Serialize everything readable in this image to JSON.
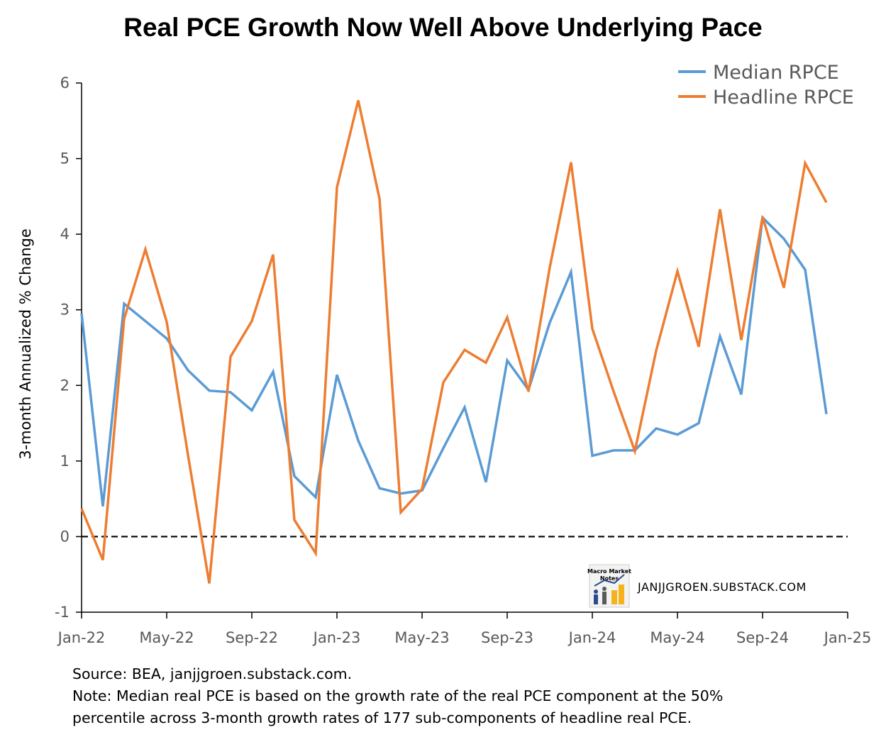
{
  "chart_data": {
    "type": "line",
    "title": "Real PCE Growth Now Well Above Underlying Pace",
    "ylabel": "3-month Annualized % Change",
    "xlabel": "",
    "ylim": [
      -1,
      6
    ],
    "yticks": [
      -1,
      0,
      1,
      2,
      3,
      4,
      5,
      6
    ],
    "x_start": "2022-01",
    "x_end": "2025-01",
    "xticks": [
      "Jan-22",
      "May-22",
      "Sep-22",
      "Jan-23",
      "May-23",
      "Sep-23",
      "Jan-24",
      "May-24",
      "Sep-24",
      "Jan-25"
    ],
    "x": [
      "2022-01",
      "2022-02",
      "2022-03",
      "2022-04",
      "2022-05",
      "2022-06",
      "2022-07",
      "2022-08",
      "2022-09",
      "2022-10",
      "2022-11",
      "2022-12",
      "2023-01",
      "2023-02",
      "2023-03",
      "2023-04",
      "2023-05",
      "2023-06",
      "2023-07",
      "2023-08",
      "2023-09",
      "2023-10",
      "2023-11",
      "2023-12",
      "2024-01",
      "2024-02",
      "2024-03",
      "2024-04",
      "2024-05",
      "2024-06",
      "2024-07",
      "2024-08",
      "2024-09",
      "2024-10",
      "2024-11",
      "2024-12"
    ],
    "series": [
      {
        "name": "Median RPCE",
        "color": "#5B9BD5",
        "values": [
          2.95,
          0.4,
          3.08,
          2.85,
          2.62,
          2.2,
          1.93,
          1.91,
          1.67,
          2.18,
          0.8,
          0.52,
          2.14,
          1.27,
          0.64,
          0.57,
          0.61,
          1.17,
          1.71,
          0.72,
          2.33,
          1.94,
          2.83,
          3.5,
          1.07,
          1.14,
          1.14,
          1.43,
          1.35,
          1.5,
          2.65,
          1.88,
          4.22,
          3.94,
          3.53,
          1.62
        ]
      },
      {
        "name": "Headline RPCE",
        "color": "#ED7D31",
        "values": [
          0.37,
          -0.31,
          2.88,
          3.8,
          2.84,
          1.08,
          -0.62,
          2.38,
          2.85,
          3.73,
          0.22,
          -0.22,
          4.62,
          5.77,
          4.47,
          0.32,
          0.63,
          2.04,
          2.47,
          2.3,
          2.9,
          1.92,
          3.56,
          4.95,
          2.75,
          1.92,
          1.13,
          2.46,
          3.51,
          2.51,
          4.33,
          2.6,
          4.23,
          3.29,
          4.94,
          4.42
        ]
      }
    ],
    "zero_line": {
      "value": 0,
      "style": "dashed"
    },
    "legend": {
      "position": "top-right"
    },
    "grid": false
  },
  "watermark": {
    "logo_text": "Macro Market Notes",
    "text": "JANJJGROEN.SUBSTACK.COM"
  },
  "footer": {
    "source": "Source: BEA, janjjgroen.substack.com.",
    "note_line1": "Note: Median real PCE is based on the growth rate of the real PCE component at the 50%",
    "note_line2": "percentile across 3-month growth rates of 177 sub-components of headline real PCE."
  }
}
